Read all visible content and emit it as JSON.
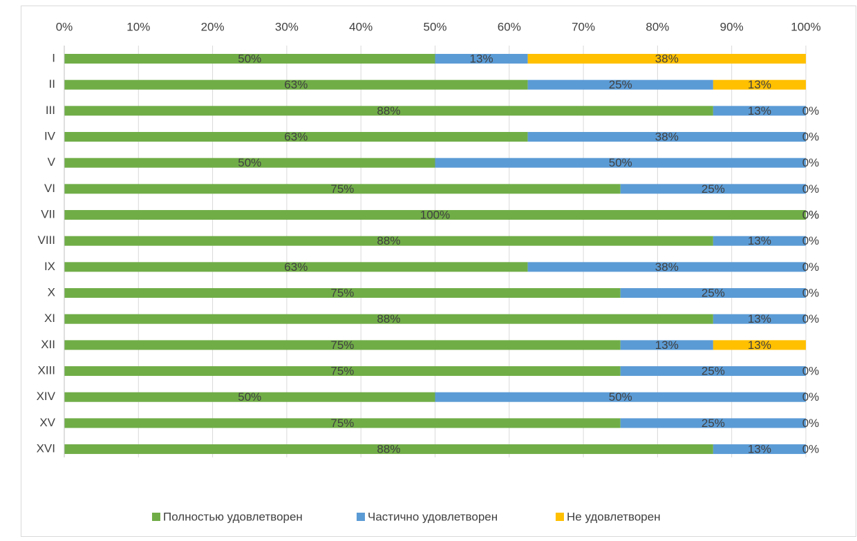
{
  "chart_data": {
    "type": "stacked_barh",
    "categories": [
      "I",
      "II",
      "III",
      "IV",
      "V",
      "VI",
      "VII",
      "VIII",
      "IX",
      "X",
      "XI",
      "XII",
      "XIII",
      "XIV",
      "XV",
      "XVI"
    ],
    "series": [
      {
        "name": "Полностью удовлетворен",
        "color": "#70ad47",
        "values": [
          50,
          62.5,
          87.5,
          62.5,
          50,
          75,
          100,
          87.5,
          62.5,
          75,
          87.5,
          75,
          75,
          50,
          75,
          87.5
        ],
        "value_labels": [
          "50%",
          "63%",
          "88%",
          "63%",
          "50%",
          "75%",
          "100%",
          "88%",
          "63%",
          "75%",
          "88%",
          "75%",
          "75%",
          "50%",
          "75%",
          "88%"
        ]
      },
      {
        "name": "Частично удовлетворен",
        "color": "#5b9bd5",
        "values": [
          12.5,
          25,
          12.5,
          37.5,
          50,
          25,
          0,
          12.5,
          37.5,
          25,
          12.5,
          12.5,
          25,
          50,
          25,
          12.5
        ],
        "value_labels": [
          "13%",
          "25%",
          "13%",
          "38%",
          "50%",
          "25%",
          "0%",
          "13%",
          "38%",
          "25%",
          "13%",
          "13%",
          "25%",
          "50%",
          "25%",
          "13%"
        ]
      },
      {
        "name": "Не удовлетворен",
        "color": "#ffc000",
        "values": [
          37.5,
          12.5,
          0,
          0,
          0,
          0,
          0,
          0,
          0,
          0,
          0,
          12.5,
          0,
          0,
          0,
          0
        ],
        "value_labels": [
          "38%",
          "13%",
          "0%",
          "0%",
          "0%",
          "0%",
          "0%",
          "0%",
          "0%",
          "0%",
          "0%",
          "13%",
          "0%",
          "0%",
          "0%",
          "0%"
        ]
      }
    ],
    "xlim": [
      0,
      100
    ],
    "xticks": [
      {
        "value": 0,
        "label": "0%"
      },
      {
        "value": 10,
        "label": "10%"
      },
      {
        "value": 20,
        "label": "20%"
      },
      {
        "value": 30,
        "label": "30%"
      },
      {
        "value": 40,
        "label": "40%"
      },
      {
        "value": 50,
        "label": "50%"
      },
      {
        "value": 60,
        "label": "60%"
      },
      {
        "value": 70,
        "label": "70%"
      },
      {
        "value": 80,
        "label": "80%"
      },
      {
        "value": 90,
        "label": "90%"
      },
      {
        "value": 100,
        "label": "100%"
      }
    ],
    "grid": true,
    "legend": "bottom"
  }
}
